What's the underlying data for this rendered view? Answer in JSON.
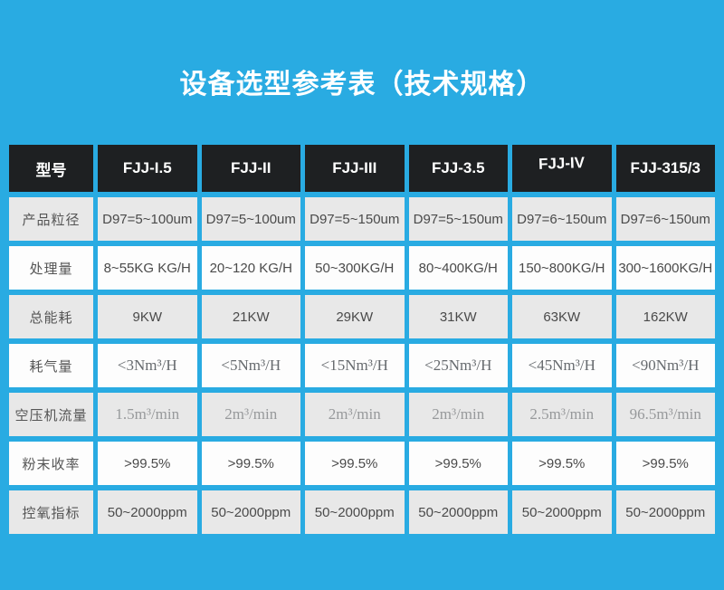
{
  "page": {
    "title": "设备选型参考表（技术规格）",
    "background_color": "#29ABE2"
  },
  "colors": {
    "header_bg": "#1e2022",
    "header_text": "#ffffff",
    "row_gray_bg": "#e8e8e8",
    "row_white_bg": "#fdfdfd",
    "value_text": "#4a4a4a",
    "serif_dark_text": "#666a6e",
    "serif_light_text": "#97999b"
  },
  "table": {
    "header": {
      "model_label": "型号",
      "columns": [
        "FJJ-I.5",
        "FJJ-II",
        "FJJ-III",
        "FJJ-3.5",
        "FJJ-IV",
        "FJJ-315/3"
      ]
    },
    "rows": [
      {
        "label": "产品粒径",
        "values": [
          "D97=5~100um",
          "D97=5~100um",
          "D97=5~150um",
          "D97=5~150um",
          "D97=6~150um",
          "D97=6~150um"
        ]
      },
      {
        "label": "处理量",
        "values": [
          "8~55KG KG/H",
          "20~120 KG/H",
          "50~300KG/H",
          "80~400KG/H",
          "150~800KG/H",
          "300~1600KG/H"
        ]
      },
      {
        "label": "总能耗",
        "values": [
          "9KW",
          "21KW",
          "29KW",
          "31KW",
          "63KW",
          "162KW"
        ]
      },
      {
        "label": "耗气量",
        "values": [
          "<3Nm³/H",
          "<5Nm³/H",
          "<15Nm³/H",
          "<25Nm³/H",
          "<45Nm³/H",
          "<90Nm³/H"
        ]
      },
      {
        "label": "空压机流量",
        "values": [
          "1.5m³/min",
          "2m³/min",
          "2m³/min",
          "2m³/min",
          "2.5m³/min",
          "96.5m³/min"
        ]
      },
      {
        "label": "粉末收率",
        "values": [
          ">99.5%",
          ">99.5%",
          ">99.5%",
          ">99.5%",
          ">99.5%",
          ">99.5%"
        ]
      },
      {
        "label": "控氧指标",
        "values": [
          "50~2000ppm",
          "50~2000ppm",
          "50~2000ppm",
          "50~2000ppm",
          "50~2000ppm",
          "50~2000ppm"
        ]
      }
    ]
  }
}
